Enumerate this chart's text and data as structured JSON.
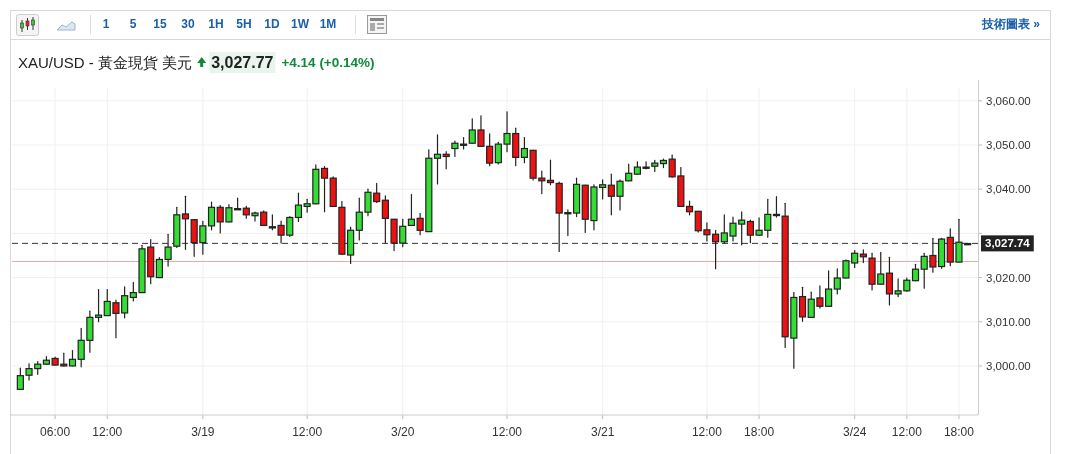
{
  "chart_data": {
    "type": "candlestick",
    "title": "XAU/USD - 黃金現貨 美元",
    "annotations": [
      "3,027.77",
      "+4.14 (+0.14%)",
      "15",
      "30",
      "1H",
      "5H",
      "1D",
      "1W",
      "1M",
      "1",
      "5",
      "技術圖表 »"
    ],
    "categories": [
      null,
      null,
      null,
      null,
      "06:00",
      null,
      null,
      null,
      null,
      null,
      "12:00",
      null,
      null,
      null,
      null,
      null,
      null,
      null,
      null,
      null,
      null,
      "3/19",
      null,
      null,
      null,
      null,
      null,
      null,
      null,
      null,
      null,
      null,
      null,
      "12:00",
      null,
      null,
      null,
      null,
      null,
      null,
      null,
      null,
      null,
      null,
      "3/20",
      null,
      null,
      null,
      null,
      null,
      null,
      null,
      null,
      null,
      null,
      null,
      "12:00",
      null,
      null,
      null,
      null,
      null,
      null,
      null,
      null,
      null,
      null,
      "3/21",
      null,
      null,
      null,
      null,
      null,
      null,
      null,
      null,
      null,
      null,
      null,
      "12:00",
      null,
      null,
      null,
      null,
      null,
      "18:00",
      null,
      null,
      null,
      null,
      null,
      null,
      null,
      null,
      null,
      null,
      "3/24",
      null,
      null,
      null,
      null,
      null,
      "12:00",
      null,
      null,
      null,
      null,
      null,
      "18:00",
      null
    ],
    "ohlc": [
      [
        2994.7,
        2999.5,
        2994.7,
        2997.8
      ],
      [
        2997.9,
        3000.5,
        2996.8,
        2999.4
      ],
      [
        2999.4,
        3001,
        2998.1,
        3000.4
      ],
      [
        3000.4,
        3002.1,
        3000.4,
        3001.3
      ],
      [
        3001.7,
        3002,
        3000.2,
        3000.2
      ],
      [
        3000.4,
        3002.9,
        3000,
        3000
      ],
      [
        3000,
        3003.5,
        3000,
        3001.5
      ],
      [
        3001.5,
        3008.5,
        2999.8,
        3005.8
      ],
      [
        3005.8,
        3012.4,
        3003.1,
        3011
      ],
      [
        3011,
        3017.3,
        3010,
        3011.5
      ],
      [
        3011.4,
        3017.3,
        3011.4,
        3014.6
      ],
      [
        3014.3,
        3014.9,
        3006.4,
        3011.9
      ],
      [
        3012,
        3017.9,
        3010.9,
        3015.9
      ],
      [
        3015.5,
        3018.9,
        3014.7,
        3016.6
      ],
      [
        3016.6,
        3027.3,
        3016.6,
        3026.5
      ],
      [
        3026.9,
        3028.6,
        3018.6,
        3020.2
      ],
      [
        3020,
        3024.5,
        3020,
        3024.1
      ],
      [
        3024.1,
        3029.8,
        3022.6,
        3026.9
      ],
      [
        3027.1,
        3035.9,
        3026.8,
        3034.2
      ],
      [
        3034.4,
        3038.4,
        3026.4,
        3033.3
      ],
      [
        3033.1,
        3033.1,
        3024.8,
        3027.9
      ],
      [
        3027.9,
        3032.7,
        3025.3,
        3031.7
      ],
      [
        3031.7,
        3037.1,
        3030.8,
        3035.9
      ],
      [
        3035.9,
        3036.3,
        3030.1,
        3032.6
      ],
      [
        3032.6,
        3036.5,
        3032.6,
        3035.8
      ],
      [
        3035.6,
        3038,
        3035.6,
        3035.6
      ],
      [
        3035.7,
        3036.1,
        3033.4,
        3034.2
      ],
      [
        3034,
        3034.8,
        3032.8,
        3034.6
      ],
      [
        3034.8,
        3035.1,
        3031.8,
        3031.8
      ],
      [
        3031.5,
        3034.2,
        3030.8,
        3031.5
      ],
      [
        3031.8,
        3032.8,
        3027.8,
        3029.6
      ],
      [
        3029.6,
        3033.8,
        3029.3,
        3033.6
      ],
      [
        3033.6,
        3039.1,
        3032.7,
        3036.4
      ],
      [
        3036.1,
        3037.7,
        3034.8,
        3036.7
      ],
      [
        3036.7,
        3045.5,
        3036.7,
        3044.5
      ],
      [
        3044.7,
        3045.1,
        3034.9,
        3042.5
      ],
      [
        3042.5,
        3042.8,
        3036.1,
        3036.1
      ],
      [
        3035.9,
        3037.2,
        3025.3,
        3025.3
      ],
      [
        3025.1,
        3031.4,
        3023.2,
        3030.7
      ],
      [
        3030.7,
        3038,
        3028.5,
        3034.8
      ],
      [
        3034.8,
        3040,
        3034,
        3039.3
      ],
      [
        3039.1,
        3041.3,
        3037,
        3037.2
      ],
      [
        3037.5,
        3038.5,
        3027.9,
        3033.4
      ],
      [
        3033.2,
        3033.2,
        3026.1,
        3027.8
      ],
      [
        3027.8,
        3033.2,
        3027,
        3031.6
      ],
      [
        3031.8,
        3038.8,
        3031.8,
        3033.2
      ],
      [
        3033.4,
        3034.5,
        3029.7,
        3030.7
      ],
      [
        3030.4,
        3048.9,
        3030.4,
        3047
      ],
      [
        3047,
        3052.3,
        3041.2,
        3047.9
      ],
      [
        3047.9,
        3048.5,
        3044.6,
        3047.4
      ],
      [
        3049.2,
        3050.9,
        3047.4,
        3050.4
      ],
      [
        3050.2,
        3051.7,
        3049.1,
        3050.2
      ],
      [
        3050.4,
        3055.9,
        3050.4,
        3053.4
      ],
      [
        3053.4,
        3056.6,
        3049.7,
        3049.7
      ],
      [
        3049.7,
        3052.5,
        3045.3,
        3045.9
      ],
      [
        3046,
        3050.6,
        3045.7,
        3050.2
      ],
      [
        3050.2,
        3057.5,
        3048.5,
        3052.6
      ],
      [
        3052.6,
        3053.8,
        3045.3,
        3047.2
      ],
      [
        3047.2,
        3051.7,
        3046,
        3049.2
      ],
      [
        3048.8,
        3048.8,
        3042.1,
        3042.5
      ],
      [
        3042.5,
        3044.1,
        3039,
        3041.9
      ],
      [
        3042,
        3046.6,
        3041,
        3041.5
      ],
      [
        3041.3,
        3041.6,
        3025.9,
        3034.6
      ],
      [
        3034.7,
        3035.3,
        3029.5,
        3034.7
      ],
      [
        3034.6,
        3042.5,
        3033.8,
        3041.1
      ],
      [
        3040.9,
        3040.9,
        3030.2,
        3033.2
      ],
      [
        3032.9,
        3041,
        3030.8,
        3040.5
      ],
      [
        3040.4,
        3042.1,
        3037.8,
        3041
      ],
      [
        3040.9,
        3043.4,
        3034.2,
        3038.4
      ],
      [
        3038.4,
        3042.1,
        3035.3,
        3041.8
      ],
      [
        3041.9,
        3045.7,
        3041.9,
        3043.6
      ],
      [
        3043.4,
        3046.2,
        3043.4,
        3045
      ],
      [
        3045,
        3046.2,
        3044.6,
        3045
      ],
      [
        3045.2,
        3046.5,
        3044,
        3045.9
      ],
      [
        3045.8,
        3046.8,
        3044.9,
        3046.5
      ],
      [
        3046.8,
        3047.7,
        3042.7,
        3042.8
      ],
      [
        3043,
        3044.9,
        3036.1,
        3036.1
      ],
      [
        3036.1,
        3037.3,
        3034.2,
        3034.9
      ],
      [
        3035,
        3035,
        3030.3,
        3030.6
      ],
      [
        3030.8,
        3032.4,
        3028.3,
        3029.7
      ],
      [
        3029.8,
        3030.7,
        3022,
        3028.1
      ],
      [
        3028.1,
        3034.2,
        3027.8,
        3030.1
      ],
      [
        3029.4,
        3033.7,
        3028.3,
        3032.3
      ],
      [
        3032.1,
        3034.9,
        3027.4,
        3033
      ],
      [
        3032.7,
        3033,
        3027.9,
        3029.6
      ],
      [
        3029.6,
        3033.5,
        3029.6,
        3030.7
      ],
      [
        3030.7,
        3037.7,
        3029.1,
        3034.3
      ],
      [
        3034.3,
        3038.3,
        3033.7,
        3034.3
      ],
      [
        3033.9,
        3036.8,
        3004.2,
        3006.6
      ],
      [
        3006.3,
        3016.6,
        2999.5,
        3015.5
      ],
      [
        3015.7,
        3017.8,
        3010.1,
        3011.1
      ],
      [
        3011,
        3016.7,
        3011,
        3015.1
      ],
      [
        3015.4,
        3018.1,
        3013.1,
        3013.5
      ],
      [
        3013.5,
        3021.5,
        3013.5,
        3017.4
      ],
      [
        3017.4,
        3022,
        3016.3,
        3019.9
      ],
      [
        3019.9,
        3024,
        3019.9,
        3023.8
      ],
      [
        3023.3,
        3026.1,
        3022.3,
        3025.5
      ],
      [
        3025.3,
        3026.3,
        3023.4,
        3024.7
      ],
      [
        3024.4,
        3025.5,
        3017.2,
        3018.5
      ],
      [
        3018.5,
        3025.7,
        3018.5,
        3020.8
      ],
      [
        3021,
        3024.6,
        3013.8,
        3016.3
      ],
      [
        3016.3,
        3019.7,
        3015.7,
        3017
      ],
      [
        3017,
        3019.9,
        3016.9,
        3019.4
      ],
      [
        3019.3,
        3023,
        3019.3,
        3021.9
      ],
      [
        3021.9,
        3025.5,
        3017.6,
        3024.8
      ],
      [
        3025,
        3028.9,
        3021.2,
        3022.4
      ],
      [
        3022.5,
        3028.9,
        3022.1,
        3028.7
      ],
      [
        3029.1,
        3031,
        3022.7,
        3023.5
      ],
      [
        3023.5,
        3033.2,
        3023.5,
        3028
      ],
      [
        3027.7,
        3027.7,
        3027.7,
        3027.7
      ]
    ],
    "colors": [
      "#33dd33",
      "#33dd33",
      "#33dd33",
      "#33dd33",
      "#ee1111",
      "#ee1111",
      "#33dd33",
      "#33dd33",
      "#33dd33",
      "#33dd33",
      "#33dd33",
      "#ee1111",
      "#33dd33",
      "#33dd33",
      "#33dd33",
      "#ee1111",
      "#33dd33",
      "#33dd33",
      "#33dd33",
      "#ee1111",
      "#ee1111",
      "#33dd33",
      "#33dd33",
      "#ee1111",
      "#33dd33",
      "#222222",
      "#ee1111",
      "#33dd33",
      "#ee1111",
      "#222222",
      "#ee1111",
      "#33dd33",
      "#33dd33",
      "#33dd33",
      "#33dd33",
      "#ee1111",
      "#ee1111",
      "#ee1111",
      "#33dd33",
      "#33dd33",
      "#33dd33",
      "#ee1111",
      "#ee1111",
      "#ee1111",
      "#33dd33",
      "#33dd33",
      "#ee1111",
      "#33dd33",
      "#33dd33",
      "#ee1111",
      "#33dd33",
      "#222222",
      "#33dd33",
      "#ee1111",
      "#ee1111",
      "#33dd33",
      "#33dd33",
      "#ee1111",
      "#33dd33",
      "#ee1111",
      "#ee1111",
      "#ee1111",
      "#ee1111",
      "#222222",
      "#33dd33",
      "#ee1111",
      "#33dd33",
      "#33dd33",
      "#ee1111",
      "#33dd33",
      "#33dd33",
      "#33dd33",
      "#222222",
      "#33dd33",
      "#33dd33",
      "#ee1111",
      "#ee1111",
      "#ee1111",
      "#ee1111",
      "#ee1111",
      "#ee1111",
      "#33dd33",
      "#33dd33",
      "#33dd33",
      "#ee1111",
      "#33dd33",
      "#33dd33",
      "#222222",
      "#ee1111",
      "#33dd33",
      "#ee1111",
      "#33dd33",
      "#ee1111",
      "#33dd33",
      "#33dd33",
      "#33dd33",
      "#33dd33",
      "#ee1111",
      "#ee1111",
      "#33dd33",
      "#ee1111",
      "#33dd33",
      "#33dd33",
      "#33dd33",
      "#33dd33",
      "#ee1111",
      "#33dd33",
      "#ee1111",
      "#33dd33",
      "#222222"
    ],
    "ylim": [
      2988.9,
      3062.9
    ],
    "yticks": [
      {
        "value": 3000,
        "label": "3,000.00"
      },
      {
        "value": 3010,
        "label": "3,010.00"
      },
      {
        "value": 3020,
        "label": "3,020.00"
      },
      {
        "value": 3030,
        "label": null
      },
      {
        "value": 3040,
        "label": "3,040.00"
      },
      {
        "value": 3050,
        "label": "3,050.00"
      },
      {
        "value": 3060,
        "label": "3,060.00"
      }
    ],
    "ref_lines": [
      {
        "axis": "y",
        "value": 3023.63,
        "color": "#f4a6a6",
        "line_style": "solid"
      },
      {
        "axis": "y",
        "value": 3027.74,
        "label": "3,027.74",
        "color": "#333333",
        "line_style": "dashed"
      }
    ],
    "grid": true
  }
}
